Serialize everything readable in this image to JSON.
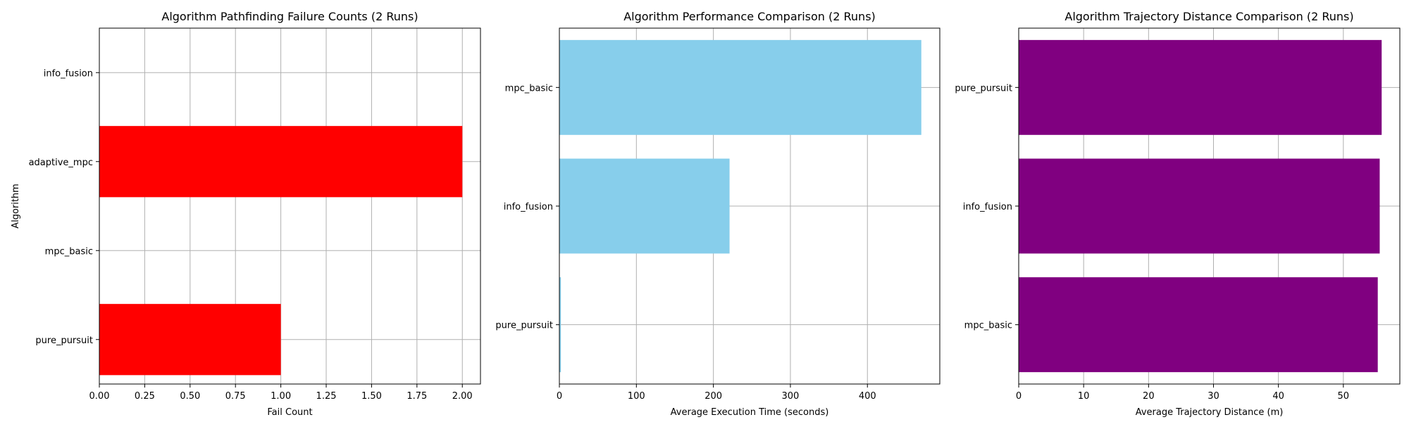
{
  "chart_data": [
    {
      "type": "bar",
      "orientation": "horizontal",
      "title": "Algorithm Pathfinding Failure Counts (2 Runs)",
      "xlabel": "Fail Count",
      "ylabel": "Algorithm",
      "categories": [
        "pure_pursuit",
        "mpc_basic",
        "adaptive_mpc",
        "info_fusion"
      ],
      "values": [
        1,
        0,
        2,
        0
      ],
      "xlim": [
        0,
        2.1
      ],
      "xticks": [
        0,
        0.25,
        0.5,
        0.75,
        1.0,
        1.25,
        1.5,
        1.75,
        2.0
      ],
      "xtick_labels": [
        "0.00",
        "0.25",
        "0.50",
        "0.75",
        "1.00",
        "1.25",
        "1.50",
        "1.75",
        "2.00"
      ],
      "color": "#ff0000",
      "grid": true
    },
    {
      "type": "bar",
      "orientation": "horizontal",
      "title": "Algorithm Performance Comparison (2 Runs)",
      "xlabel": "Average Execution Time (seconds)",
      "ylabel": "",
      "categories": [
        "pure_pursuit",
        "info_fusion",
        "mpc_basic"
      ],
      "values": [
        2,
        221,
        470
      ],
      "xlim": [
        0,
        494
      ],
      "xticks": [
        0,
        100,
        200,
        300,
        400
      ],
      "xtick_labels": [
        "0",
        "100",
        "200",
        "300",
        "400"
      ],
      "color": "#87ceeb",
      "grid": true
    },
    {
      "type": "bar",
      "orientation": "horizontal",
      "title": "Algorithm Trajectory Distance Comparison (2 Runs)",
      "xlabel": "Average Trajectory Distance (m)",
      "ylabel": "",
      "categories": [
        "mpc_basic",
        "info_fusion",
        "pure_pursuit"
      ],
      "values": [
        55.3,
        55.6,
        55.9
      ],
      "xlim": [
        0,
        58.7
      ],
      "xticks": [
        0,
        10,
        20,
        30,
        40,
        50
      ],
      "xtick_labels": [
        "0",
        "10",
        "20",
        "30",
        "40",
        "50"
      ],
      "color": "#800080",
      "grid": true
    }
  ]
}
